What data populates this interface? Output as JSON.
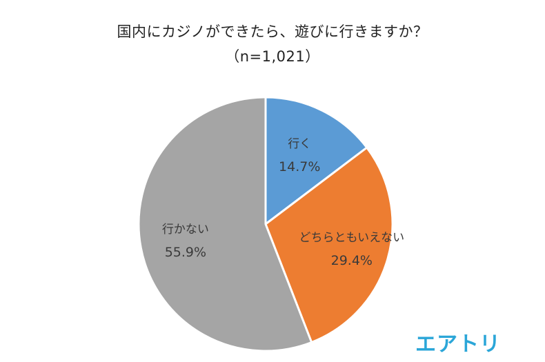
{
  "chart_data": {
    "type": "pie",
    "title": "国内にカジノができたら、遊びに行きますか？",
    "subtitle": "（n=1,021）",
    "start_angle_deg": 0,
    "direction": "clockwise",
    "slices": [
      {
        "label": "行く",
        "value": 14.7,
        "value_label": "14.7%",
        "color": "#5b9bd5"
      },
      {
        "label": "どちらともいえない",
        "value": 29.4,
        "value_label": "29.4%",
        "color": "#ed7d31"
      },
      {
        "label": "行かない",
        "value": 55.9,
        "value_label": "55.9%",
        "color": "#a5a5a5"
      }
    ],
    "slice_border_color": "#ffffff"
  },
  "brand": {
    "logo_text": "エアトリ",
    "color": "#2ba6d8"
  }
}
